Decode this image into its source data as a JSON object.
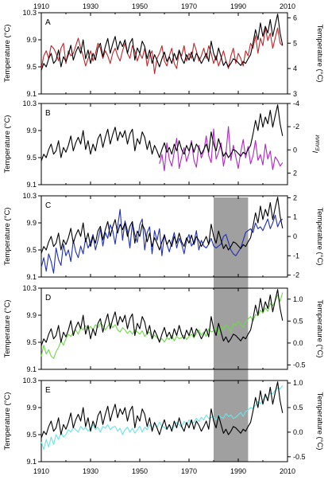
{
  "figure": {
    "x_axis": {
      "min": 1910,
      "max": 2010,
      "ticks": [
        1910,
        1930,
        1950,
        1970,
        1990,
        2010
      ]
    },
    "left_axis": {
      "label": "Temperature (°C)",
      "min": 9.1,
      "max": 10.3,
      "ticks": [
        "10.3",
        "9.9",
        "9.5",
        "9.1"
      ]
    },
    "shaded_span": {
      "from": 1980,
      "to": 1994,
      "color": "#a0a0a0"
    },
    "temperature_series": {
      "name": "Temperature",
      "color": "#000000",
      "x": [
        1910,
        1911,
        1912,
        1913,
        1914,
        1915,
        1916,
        1917,
        1918,
        1919,
        1920,
        1921,
        1922,
        1923,
        1924,
        1925,
        1926,
        1927,
        1928,
        1929,
        1930,
        1931,
        1932,
        1933,
        1934,
        1935,
        1936,
        1937,
        1938,
        1939,
        1940,
        1941,
        1942,
        1943,
        1944,
        1945,
        1946,
        1947,
        1948,
        1949,
        1950,
        1951,
        1952,
        1953,
        1954,
        1955,
        1956,
        1957,
        1958,
        1959,
        1960,
        1961,
        1962,
        1963,
        1964,
        1965,
        1966,
        1967,
        1968,
        1969,
        1970,
        1971,
        1972,
        1973,
        1974,
        1975,
        1976,
        1977,
        1978,
        1979,
        1980,
        1981,
        1982,
        1983,
        1984,
        1985,
        1986,
        1987,
        1988,
        1989,
        1990,
        1991,
        1992,
        1993,
        1994,
        1995,
        1996,
        1997,
        1998,
        1999,
        2000,
        2001,
        2002,
        2003,
        2004,
        2005,
        2006,
        2007,
        2008
      ],
      "y": [
        9.45,
        9.55,
        9.5,
        9.62,
        9.7,
        9.55,
        9.6,
        9.75,
        9.5,
        9.65,
        9.58,
        9.68,
        9.82,
        9.6,
        9.72,
        9.8,
        9.7,
        9.9,
        9.62,
        9.75,
        9.55,
        9.7,
        9.6,
        9.78,
        9.85,
        9.65,
        9.8,
        9.92,
        9.7,
        9.84,
        9.95,
        9.75,
        9.88,
        9.8,
        9.9,
        9.7,
        9.85,
        9.92,
        9.6,
        9.78,
        9.7,
        9.88,
        9.8,
        9.62,
        9.75,
        9.55,
        9.68,
        9.6,
        9.5,
        9.62,
        9.72,
        9.58,
        9.65,
        9.55,
        9.7,
        9.6,
        9.75,
        9.62,
        9.55,
        9.68,
        9.6,
        9.72,
        9.58,
        9.7,
        9.64,
        9.55,
        9.62,
        9.7,
        9.58,
        9.88,
        9.7,
        9.6,
        9.78,
        9.65,
        9.52,
        9.58,
        9.5,
        9.55,
        9.62,
        9.6,
        9.56,
        9.52,
        9.58,
        9.55,
        9.62,
        9.68,
        9.85,
        10.05,
        9.9,
        10.15,
        9.95,
        10.1,
        10.0,
        10.2,
        9.95,
        10.12,
        10.28,
        10.0,
        9.82
      ]
    },
    "panels": [
      {
        "letter": "A",
        "left_ticks_visible": true,
        "right_axis": {
          "label": "Temperature (°C)",
          "min": 3,
          "max": 6.2,
          "invert": false,
          "ticks": [
            6,
            5,
            4,
            3
          ],
          "tick_labels": [
            "6",
            "5",
            "4",
            "3"
          ]
        },
        "series": {
          "name": "Temperature",
          "color": "#c1272d",
          "x_start": 1910,
          "x_end": 2008,
          "y": [
            4.0,
            4.5,
            4.7,
            4.4,
            4.9,
            4.8,
            4.6,
            4.3,
            4.8,
            5.0,
            4.2,
            4.7,
            4.5,
            4.6,
            4.9,
            5.2,
            4.8,
            4.5,
            4.1,
            4.4,
            4.7,
            4.3,
            4.6,
            5.0,
            4.8,
            4.4,
            4.7,
            4.5,
            4.2,
            4.6,
            4.8,
            4.5,
            4.3,
            4.7,
            5.0,
            4.6,
            4.4,
            4.9,
            4.7,
            4.3,
            4.6,
            4.4,
            4.8,
            4.1,
            4.5,
            4.7,
            3.8,
            4.4,
            4.6,
            4.9,
            4.3,
            4.1,
            4.5,
            4.8,
            4.2,
            4.0,
            4.7,
            4.5,
            4.9,
            4.3,
            4.6,
            4.4,
            5.0,
            4.7,
            4.3,
            4.5,
            4.8,
            4.4,
            4.9,
            4.6,
            4.2,
            4.5,
            4.1,
            4.4,
            4.7,
            4.3,
            4.0,
            4.5,
            4.8,
            4.2,
            4.6,
            4.4,
            4.1,
            4.7,
            4.5,
            5.0,
            4.8,
            5.3,
            4.6,
            5.2,
            4.9,
            5.6,
            5.1,
            5.4,
            4.8,
            5.2,
            5.6,
            5.0,
            4.9
          ]
        }
      },
      {
        "letter": "B",
        "left_ticks_visible": true,
        "right_axis": {
          "label": "I EAWM",
          "min": -4,
          "max": 3,
          "invert": true,
          "ticks": [
            -4,
            -2,
            0,
            2
          ],
          "tick_labels": [
            "-4",
            "-2",
            "0",
            "2"
          ]
        },
        "series": {
          "name": "I EAWM",
          "color": "#b026c8",
          "x_start": 1958,
          "x_end": 2008,
          "y": [
            1.2,
            0.4,
            1.8,
            -0.6,
            0.8,
            1.4,
            0.2,
            -1.0,
            1.6,
            0.6,
            -0.2,
            1.0,
            0.3,
            -0.8,
            0.9,
            1.5,
            -0.4,
            0.7,
            0.1,
            -1.2,
            0.5,
            1.1,
            -1.8,
            0.8,
            0.2,
            -0.6,
            1.4,
            0.3,
            -2.0,
            0.9,
            -0.4,
            0.6,
            1.6,
            0.2,
            -0.9,
            0.7,
            -0.3,
            1.2,
            0.5,
            -0.8,
            0.9,
            0.4,
            1.3,
            -0.5,
            0.8,
            0.1,
            1.7,
            0.6,
            0.9,
            1.4,
            1.1
          ]
        }
      },
      {
        "letter": "C",
        "left_ticks_visible": true,
        "right_axis": {
          "label": "Temperature (°C)",
          "min": -2.1,
          "max": 2.1,
          "invert": false,
          "ticks": [
            2,
            1,
            0,
            -1,
            -2
          ],
          "tick_labels": [
            "2",
            "1",
            "0",
            "-1",
            "-2"
          ]
        },
        "series": {
          "name": "Temperature",
          "color": "#1f2fb8",
          "x_start": 1910,
          "x_end": 2008,
          "y": [
            -1.6,
            -1.1,
            -1.8,
            -0.9,
            -1.3,
            -1.9,
            -0.6,
            -1.2,
            -1.5,
            -0.4,
            -1.0,
            -0.7,
            -1.3,
            -0.2,
            -0.8,
            -1.1,
            -0.5,
            -0.9,
            -0.1,
            -0.6,
            -0.3,
            0.1,
            -0.7,
            -0.2,
            0.4,
            -0.5,
            0.2,
            -0.1,
            0.6,
            0.3,
            -0.4,
            0.5,
            1.4,
            -0.2,
            0.8,
            0.3,
            -0.6,
            0.7,
            0.1,
            -0.3,
            0.6,
            0.9,
            -0.7,
            0.2,
            0.5,
            -0.9,
            0.3,
            -0.2,
            0.4,
            -1.0,
            0.1,
            -0.4,
            -0.8,
            -0.3,
            0.2,
            -0.6,
            -0.1,
            -0.4,
            -0.9,
            -0.2,
            0.1,
            -0.5,
            -0.3,
            0.3,
            -0.7,
            -0.2,
            -0.5,
            -0.6,
            -0.4,
            -0.1,
            -0.5,
            -0.6,
            -0.5,
            -0.4,
            0.0,
            0.1,
            -0.3,
            -0.7,
            -0.9,
            -1.0,
            -0.8,
            -0.6,
            -0.2,
            0.2,
            0.3,
            0.4,
            0.2,
            0.7,
            0.4,
            0.5,
            0.3,
            0.6,
            0.9,
            0.4,
            0.7,
            1.1,
            0.5,
            0.8,
            0.9
          ]
        }
      },
      {
        "letter": "D",
        "left_ticks_visible": true,
        "right_axis": {
          "label": "Temperature (°C)",
          "min": -0.6,
          "max": 1.25,
          "invert": false,
          "ticks": [
            1.0,
            0.5,
            0.0,
            -0.5
          ],
          "tick_labels": [
            "1.0",
            "0.5",
            "0.0",
            "-0.5"
          ]
        },
        "series": {
          "name": "Temperature",
          "color": "#6fd84a",
          "x_start": 1910,
          "x_end": 2008,
          "y": [
            -0.3,
            -0.05,
            -0.25,
            -0.15,
            -0.3,
            -0.35,
            -0.2,
            -0.1,
            0.05,
            -0.05,
            0.1,
            0.2,
            0.15,
            0.25,
            0.3,
            0.2,
            0.35,
            0.3,
            0.4,
            0.32,
            0.38,
            0.3,
            0.42,
            0.35,
            0.45,
            0.4,
            0.3,
            0.38,
            0.45,
            0.35,
            0.42,
            0.3,
            0.25,
            0.35,
            0.3,
            0.22,
            0.28,
            0.2,
            0.3,
            0.25,
            0.2,
            0.28,
            0.15,
            0.22,
            0.25,
            0.1,
            0.18,
            0.12,
            0.05,
            0.1,
            0.02,
            0.12,
            0.08,
            0.18,
            0.05,
            0.15,
            0.1,
            0.12,
            0.18,
            0.08,
            0.15,
            0.2,
            0.12,
            0.22,
            0.3,
            0.18,
            0.25,
            0.15,
            0.32,
            0.25,
            0.28,
            0.35,
            0.2,
            0.38,
            0.3,
            0.42,
            0.35,
            0.25,
            0.45,
            0.4,
            0.5,
            0.42,
            0.35,
            0.48,
            0.55,
            0.6,
            0.5,
            0.65,
            0.62,
            0.75,
            0.68,
            0.8,
            0.72,
            0.9,
            0.85,
            0.95,
            1.1,
            0.95,
            1.15
          ]
        }
      },
      {
        "letter": "E",
        "left_ticks_visible": true,
        "right_axis": {
          "label": "Temperature (°C)",
          "min": -0.6,
          "max": 1.05,
          "invert": false,
          "ticks": [
            1.0,
            0.5,
            0.0,
            -0.5
          ],
          "tick_labels": [
            "1.0",
            "0.5",
            "0.0",
            "-0.5"
          ]
        },
        "series": {
          "name": "Temperature",
          "color": "#6be3e6",
          "x_start": 1910,
          "x_end": 2008,
          "y": [
            -0.2,
            -0.35,
            -0.15,
            -0.3,
            -0.1,
            -0.25,
            -0.05,
            -0.15,
            0.0,
            -0.1,
            -0.05,
            0.05,
            0.0,
            0.1,
            0.05,
            0.0,
            0.12,
            0.05,
            0.1,
            0.02,
            0.08,
            0.15,
            0.05,
            0.1,
            0.0,
            0.12,
            0.08,
            0.15,
            0.05,
            0.1,
            0.12,
            0.02,
            0.08,
            -0.05,
            0.05,
            0.1,
            0.0,
            0.08,
            -0.02,
            0.05,
            0.12,
            0.0,
            0.1,
            0.05,
            0.15,
            0.08,
            0.18,
            0.1,
            0.2,
            0.12,
            0.1,
            0.05,
            0.15,
            0.08,
            0.12,
            0.2,
            0.15,
            0.1,
            0.22,
            0.15,
            0.25,
            0.18,
            0.2,
            0.28,
            0.22,
            0.3,
            0.25,
            0.35,
            0.28,
            0.3,
            0.32,
            0.25,
            0.35,
            0.3,
            0.28,
            0.38,
            0.32,
            0.35,
            0.28,
            0.3,
            0.35,
            0.4,
            0.32,
            0.42,
            0.45,
            0.5,
            0.48,
            0.55,
            0.62,
            0.58,
            0.65,
            0.72,
            0.7,
            0.8,
            0.78,
            0.85,
            0.9,
            0.88,
            0.95
          ]
        }
      }
    ]
  }
}
